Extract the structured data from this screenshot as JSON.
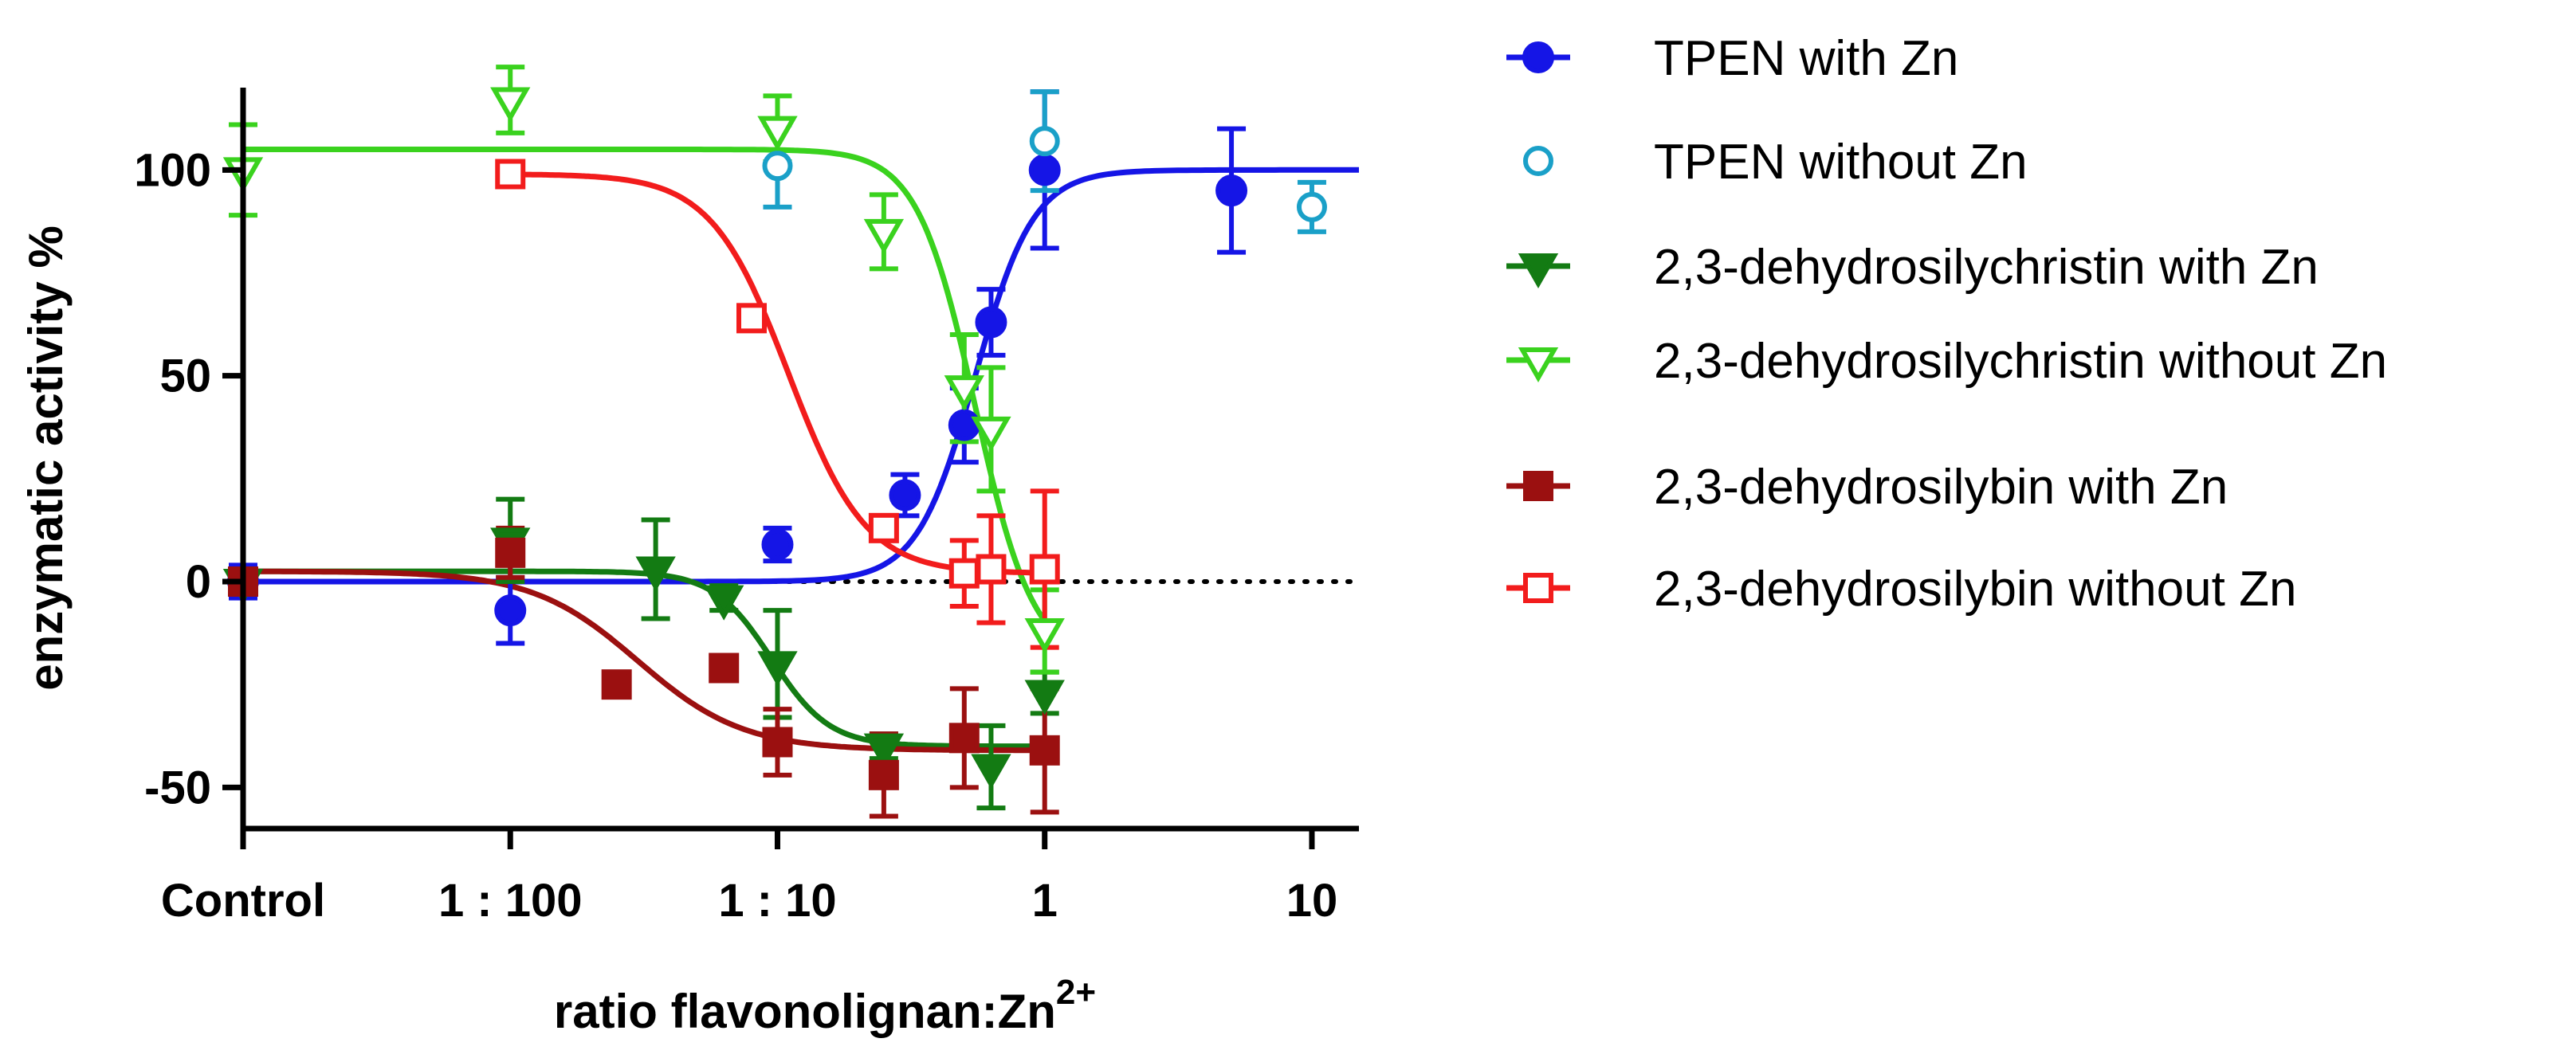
{
  "chart_data": {
    "type": "scatter",
    "title": "",
    "xlabel": "ratio flavonolignan:Zn",
    "xlabel_superscript": "2+",
    "ylabel": "enzymatic activity %",
    "x_scale": "log10 (Control placed at 1:1000)",
    "xlim": [
      0.001,
      15
    ],
    "ylim": [
      -60,
      120
    ],
    "x_ticks": [
      {
        "value": 0.001,
        "label": "Control"
      },
      {
        "value": 0.01,
        "label": "1 : 100"
      },
      {
        "value": 0.1,
        "label": "1 : 10"
      },
      {
        "value": 1,
        "label": "1"
      },
      {
        "value": 10,
        "label": "10"
      }
    ],
    "y_ticks": [
      {
        "value": -50,
        "label": "-50"
      },
      {
        "value": 0,
        "label": "0"
      },
      {
        "value": 50,
        "label": "50"
      },
      {
        "value": 100,
        "label": "100"
      }
    ],
    "reference_line": {
      "y": 0,
      "style": "dotted",
      "color": "#000000"
    },
    "grid": false,
    "legend_position": "right",
    "series": [
      {
        "name": "TPEN with Zn",
        "color": "#1515e6",
        "marker": "circle",
        "filled": true,
        "points": [
          {
            "x": 0.001,
            "y": 0,
            "err": 4
          },
          {
            "x": 0.01,
            "y": -7,
            "err": 8
          },
          {
            "x": 0.1,
            "y": 9,
            "err": 4
          },
          {
            "x": 0.3,
            "y": 21,
            "err": 5
          },
          {
            "x": 0.5,
            "y": 38,
            "err": 9
          },
          {
            "x": 0.63,
            "y": 63,
            "err": 8
          },
          {
            "x": 1,
            "y": 100,
            "err": 19
          },
          {
            "x": 5,
            "y": 95,
            "err": 15
          }
        ],
        "fit": {
          "bottom": 0,
          "top": 100,
          "ec50": 0.55,
          "hill": 4,
          "x_from": 0.001,
          "x_to": 15
        }
      },
      {
        "name": "TPEN without Zn",
        "color": "#1aa0c8",
        "marker": "circle",
        "filled": false,
        "points": [
          {
            "x": 0.1,
            "y": 101,
            "err": 10
          },
          {
            "x": 1,
            "y": 107,
            "err": 12
          },
          {
            "x": 10,
            "y": 91,
            "err": 6
          }
        ]
      },
      {
        "name": "2,3-dehydrosilychristin with Zn",
        "color": "#137b13",
        "marker": "triangle-down",
        "filled": true,
        "points": [
          {
            "x": 0.001,
            "y": 0,
            "err": 3
          },
          {
            "x": 0.01,
            "y": 10,
            "err": 10
          },
          {
            "x": 0.035,
            "y": 3,
            "err": 12
          },
          {
            "x": 0.063,
            "y": -4,
            "err": 3
          },
          {
            "x": 0.1,
            "y": -20,
            "err": 13
          },
          {
            "x": 0.25,
            "y": -40,
            "err": 3
          },
          {
            "x": 0.63,
            "y": -45,
            "err": 10
          },
          {
            "x": 1,
            "y": -27,
            "err": 5
          }
        ],
        "fit": {
          "bottom": -40,
          "top": 2.5,
          "ec50": 0.095,
          "hill": 4,
          "x_from": 0.001,
          "x_to": 1
        }
      },
      {
        "name": "2,3-dehydrosilychristin without Zn",
        "color": "#3ad21e",
        "marker": "triangle-down",
        "filled": false,
        "points": [
          {
            "x": 0.001,
            "y": 100,
            "err": 11
          },
          {
            "x": 0.01,
            "y": 117,
            "err": 8
          },
          {
            "x": 0.1,
            "y": 110,
            "err": 8
          },
          {
            "x": 0.25,
            "y": 85,
            "err": 9
          },
          {
            "x": 0.5,
            "y": 47,
            "err": 13
          },
          {
            "x": 0.63,
            "y": 37,
            "err": 15
          },
          {
            "x": 1,
            "y": -12,
            "err": 10
          }
        ],
        "fit": {
          "bottom": -20,
          "top": 105,
          "ec50": 0.55,
          "hill": 4,
          "x_from": 0.001,
          "x_to": 1
        }
      },
      {
        "name": "2,3-dehydrosilybin with Zn",
        "color": "#9b1010",
        "marker": "square",
        "filled": true,
        "points": [
          {
            "x": 0.001,
            "y": 0,
            "err": 3
          },
          {
            "x": 0.01,
            "y": 7,
            "err": 6
          },
          {
            "x": 0.025,
            "y": -25,
            "err": 0
          },
          {
            "x": 0.063,
            "y": -21,
            "err": 0
          },
          {
            "x": 0.1,
            "y": -39,
            "err": 8
          },
          {
            "x": 0.25,
            "y": -47,
            "err": 10
          },
          {
            "x": 0.5,
            "y": -38,
            "err": 12
          },
          {
            "x": 1,
            "y": -41,
            "err": 15
          }
        ],
        "fit": {
          "bottom": -41,
          "top": 2.5,
          "ec50": 0.03,
          "hill": 2.2,
          "x_from": 0.001,
          "x_to": 1
        }
      },
      {
        "name": "2,3-dehydrosilybin without Zn",
        "color": "#f21c1c",
        "marker": "square",
        "filled": false,
        "points": [
          {
            "x": 0.01,
            "y": 99,
            "err": 0
          },
          {
            "x": 0.08,
            "y": 64,
            "err": 0
          },
          {
            "x": 0.25,
            "y": 13,
            "err": 0
          },
          {
            "x": 0.5,
            "y": 2,
            "err": 8
          },
          {
            "x": 0.63,
            "y": 3,
            "err": 13
          },
          {
            "x": 1,
            "y": 3,
            "err": 19
          }
        ],
        "fit": {
          "bottom": 2,
          "top": 99,
          "ec50": 0.11,
          "hill": 3,
          "x_from": 0.01,
          "x_to": 1
        }
      }
    ]
  }
}
